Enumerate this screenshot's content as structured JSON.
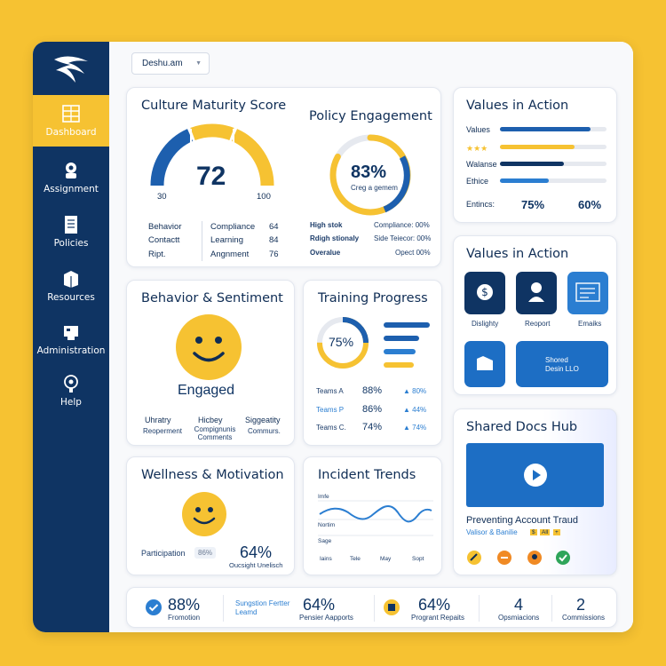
{
  "sidebar": {
    "items": [
      {
        "label": "Dashboard",
        "icon": "dashboard-icon",
        "active": true
      },
      {
        "label": "Assignment",
        "icon": "assignment-icon"
      },
      {
        "label": "Policies",
        "icon": "policies-icon"
      },
      {
        "label": "Resources",
        "icon": "resources-icon"
      },
      {
        "label": "Administration",
        "icon": "administration-icon"
      },
      {
        "label": "Help",
        "icon": "help-icon"
      }
    ]
  },
  "header": {
    "dropdown_value": "Deshu.am"
  },
  "culture": {
    "title": "Culture Maturity Score",
    "score": "72",
    "min_label": "30",
    "max_label": "100",
    "rows": [
      {
        "left": "Behavior",
        "mid": "Compliance",
        "value": "64"
      },
      {
        "left": "Contactt",
        "mid": "Learning",
        "value": "84"
      },
      {
        "left": "Ript.",
        "mid": "Angnment",
        "value": "76"
      }
    ]
  },
  "policy": {
    "title": "Policy Engagement",
    "percent": "83%",
    "sub": "Creg a gemem",
    "fill": 0.83,
    "rows": [
      {
        "left": "High stok",
        "right": "Compliance: 00%"
      },
      {
        "left": "Rdigh stionaly",
        "right": "Side Teiecor: 00%"
      },
      {
        "left": "Overalue",
        "right": "Opect 00%"
      }
    ]
  },
  "values": {
    "title": "Values in Action",
    "rows": [
      {
        "label": "Values",
        "fill": 0.85,
        "color": "#1d5fae"
      },
      {
        "label": "★★★",
        "fill": 0.7,
        "color": "#f6c232"
      },
      {
        "label": "Walanse",
        "fill": 0.6,
        "color": "#0f3463"
      },
      {
        "label": "Ethice",
        "fill": 0.46,
        "color": "#2b7ed1"
      }
    ],
    "footer_label": "Entincs:",
    "footer_a": "75%",
    "footer_b": "60%"
  },
  "behavior": {
    "title": "Behavior & Sentiment",
    "state": "Engaged",
    "cols": [
      {
        "title": "Uhratry",
        "sub": "Reoperment"
      },
      {
        "title": "Hicbey",
        "sub": "Compignunis Comments"
      },
      {
        "title": "Siggeatity",
        "sub": "Commurs."
      }
    ]
  },
  "training": {
    "title": "Training Progress",
    "percent": "75%",
    "fill": 0.75,
    "rows": [
      {
        "name": "Teams A",
        "value": "88%",
        "delta": "▲ 80%"
      },
      {
        "name": "Teams P",
        "value": "86%",
        "delta": "▲ 44%"
      },
      {
        "name": "Teams C.",
        "value": "74%",
        "delta": "▲ 74%"
      }
    ]
  },
  "values2": {
    "title": "Values in Action",
    "tiles": [
      {
        "label": "Dislighty",
        "icon": "dollar-icon"
      },
      {
        "label": "Reoport",
        "icon": "person-icon"
      },
      {
        "label": "Emaiks",
        "icon": "document-icon"
      }
    ],
    "shared_line1": "Shored",
    "shared_line2": "Desin LLO"
  },
  "wellness": {
    "title": "Wellness & Motivation",
    "label": "Participation",
    "chip": "86%",
    "value": "64%",
    "sub": "Oucsight Unelisch"
  },
  "incident": {
    "title": "Incident Trends",
    "y_labels": [
      "Imfe",
      "Nortim",
      "Sage"
    ],
    "x_labels": [
      "Iains",
      "Tele",
      "May",
      "Sopt"
    ]
  },
  "docs": {
    "title": "Shared Docs Hub",
    "video_title": "Preventing Account Traud",
    "video_sub": "Valisor & Banilie",
    "tags": [
      "$",
      "All",
      "+"
    ]
  },
  "footer": {
    "items": [
      {
        "value": "88%",
        "label": "Fromotion"
      },
      {
        "value": "",
        "label": "Sungstion Fertter Leamd"
      },
      {
        "value": "64%",
        "label": "Pensier Aapports"
      },
      {
        "value": "64%",
        "label": "Progrant Repaits"
      },
      {
        "value": "4",
        "label": "Opsmiacions"
      },
      {
        "value": "2",
        "label": "Commissions"
      }
    ]
  }
}
